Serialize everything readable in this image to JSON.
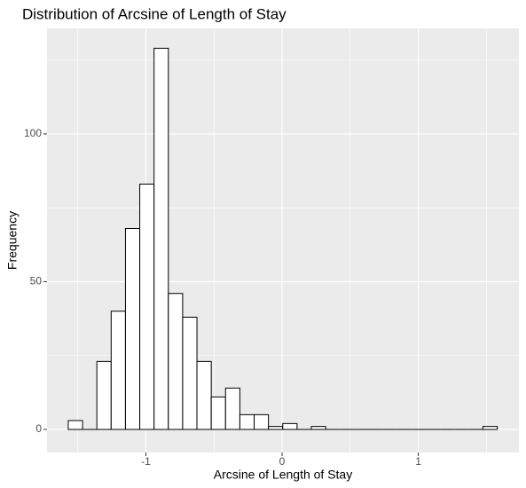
{
  "chart_data": {
    "type": "histogram",
    "title": "Distribution of Arcsine of Length of Stay",
    "xlabel": "Arcsine of Length of Stay",
    "ylabel": "Frequency",
    "bins": [
      -1.57,
      -1.465,
      -1.36,
      -1.255,
      -1.15,
      -1.045,
      -0.94,
      -0.835,
      -0.73,
      -0.625,
      -0.52,
      -0.415,
      -0.31,
      -0.205,
      -0.1,
      0.005,
      0.11,
      0.215,
      0.32,
      0.425,
      0.53,
      0.635,
      0.74,
      0.845,
      0.95,
      1.055,
      1.16,
      1.265,
      1.37,
      1.475,
      1.58
    ],
    "values": [
      3,
      0,
      23,
      40,
      68,
      83,
      129,
      46,
      38,
      23,
      11,
      14,
      5,
      5,
      1,
      2,
      0,
      1,
      0,
      0,
      0,
      0,
      0,
      0,
      0,
      0,
      0,
      0,
      0,
      1
    ],
    "color": "#ffffff",
    "edgecolor": "#000000",
    "xlim": [
      -1.726,
      1.739
    ],
    "ylim": [
      -7.8,
      135.7
    ],
    "xticks": [
      -1,
      0,
      1
    ],
    "yticks": [
      0,
      50,
      100
    ],
    "x_minor_grid": [
      -1.5,
      -0.5,
      0.5,
      1.5
    ],
    "y_minor_grid": [
      25,
      75,
      125
    ],
    "grid": true
  }
}
